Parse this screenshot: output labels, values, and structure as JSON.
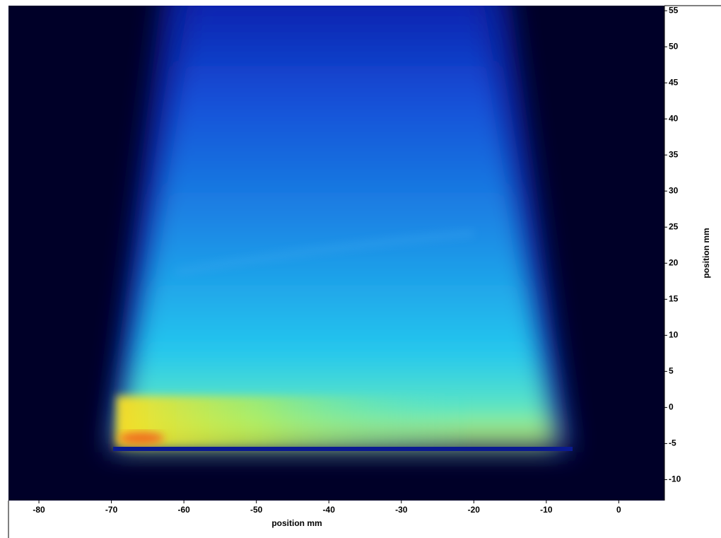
{
  "chart_data": {
    "type": "image",
    "xlabel": "position mm",
    "ylabel": "position mm",
    "xlim": [
      -84.2,
      6.3
    ],
    "ylim": [
      -12.9,
      55.7
    ],
    "xticks": [
      -80,
      -70,
      -60,
      -50,
      -40,
      -30,
      -20,
      -10,
      0
    ],
    "yticks": [
      -10,
      -5,
      0,
      5,
      10,
      15,
      20,
      25,
      30,
      35,
      40,
      45,
      50,
      55
    ]
  }
}
